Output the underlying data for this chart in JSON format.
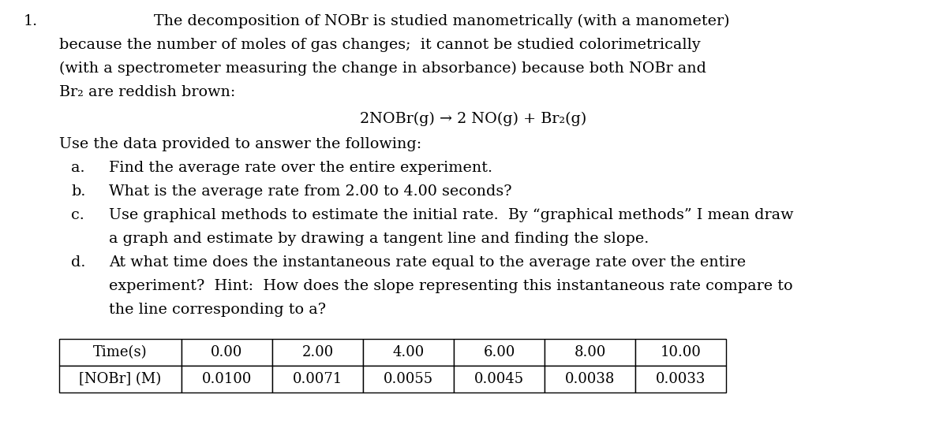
{
  "background_color": "#ffffff",
  "number": "1.",
  "para_line1": "The decomposition of NOBr is studied manometrically (with a manometer)",
  "para_line2": "because the number of moles of gas changes;  it cannot be studied colorimetrically",
  "para_line3": "(with a spectrometer measuring the change in absorbance) because both NOBr and",
  "para_line4": "Br₂ are reddish brown:",
  "equation": "2NOBr(g) → 2 NO(g) + Br₂(g)",
  "intro": "Use the data provided to answer the following:",
  "item_a_label": "a.",
  "item_a_text": "Find the average rate over the entire experiment.",
  "item_b_label": "b.",
  "item_b_text": "What is the average rate from 2.00 to 4.00 seconds?",
  "item_c_label": "c.",
  "item_c_text1": "Use graphical methods to estimate the initial rate.  By “graphical methods” I mean draw",
  "item_c_text2": "a graph and estimate by drawing a tangent line and finding the slope.",
  "item_d_label": "d.",
  "item_d_text1": "At what time does the instantaneous rate equal to the average rate over the entire",
  "item_d_text2": "experiment?  Hint:  How does the slope representing this instantaneous rate compare to",
  "item_d_text3": "the line corresponding to a?",
  "table_col0": [
    "Time(s)",
    "[NOBr] (M)"
  ],
  "table_cols": [
    [
      "0.00",
      "0.0100"
    ],
    [
      "2.00",
      "0.0071"
    ],
    [
      "4.00",
      "0.0055"
    ],
    [
      "6.00",
      "0.0045"
    ],
    [
      "8.00",
      "0.0038"
    ],
    [
      "10.00",
      "0.0033"
    ]
  ],
  "font_family": "DejaVu Serif",
  "main_fontsize": 13.8,
  "table_fontsize": 13.0
}
